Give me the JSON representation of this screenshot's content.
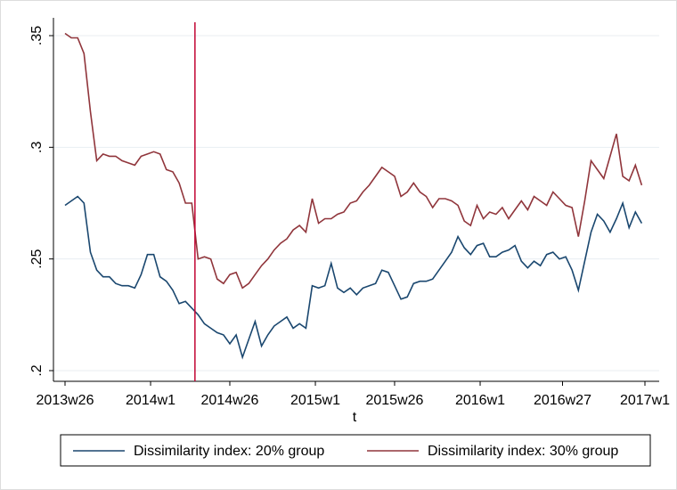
{
  "chart_data": {
    "type": "line",
    "x_label": "t",
    "x": [
      2781,
      2783,
      2785,
      2787,
      2789,
      2791,
      2793,
      2795,
      2797,
      2799,
      2801,
      2803,
      2805,
      2807,
      2809,
      2811,
      2813,
      2815,
      2817,
      2819,
      2821,
      2823,
      2825,
      2827,
      2829,
      2831,
      2833,
      2835,
      2837,
      2839,
      2841,
      2843,
      2845,
      2847,
      2849,
      2851,
      2853,
      2855,
      2857,
      2859,
      2861,
      2863,
      2865,
      2867,
      2869,
      2871,
      2873,
      2875,
      2877,
      2879,
      2881,
      2883,
      2885,
      2887,
      2889,
      2891,
      2893,
      2895,
      2897,
      2899,
      2901,
      2903,
      2905,
      2907,
      2909,
      2911,
      2913,
      2915,
      2917,
      2919,
      2921,
      2923,
      2925,
      2927,
      2929,
      2931,
      2933,
      2935,
      2937,
      2939,
      2941,
      2943,
      2945,
      2947,
      2949,
      2951,
      2953,
      2955,
      2957,
      2959,
      2961,
      2963
    ],
    "series": [
      {
        "name": "Dissimilarity index: 20% group",
        "color": "#1a476f",
        "values": [
          0.274,
          0.276,
          0.278,
          0.275,
          0.253,
          0.245,
          0.242,
          0.242,
          0.239,
          0.238,
          0.238,
          0.237,
          0.243,
          0.252,
          0.252,
          0.242,
          0.24,
          0.236,
          0.23,
          0.231,
          0.228,
          0.225,
          0.221,
          0.219,
          0.217,
          0.216,
          0.212,
          0.216,
          0.206,
          0.214,
          0.222,
          0.211,
          0.216,
          0.22,
          0.222,
          0.224,
          0.219,
          0.221,
          0.219,
          0.238,
          0.237,
          0.238,
          0.248,
          0.237,
          0.235,
          0.237,
          0.234,
          0.237,
          0.238,
          0.239,
          0.245,
          0.244,
          0.238,
          0.232,
          0.233,
          0.239,
          0.24,
          0.24,
          0.241,
          0.245,
          0.249,
          0.253,
          0.26,
          0.255,
          0.252,
          0.256,
          0.257,
          0.251,
          0.251,
          0.253,
          0.254,
          0.256,
          0.249,
          0.246,
          0.249,
          0.247,
          0.252,
          0.253,
          0.25,
          0.251,
          0.245,
          0.236,
          0.249,
          0.262,
          0.27,
          0.267,
          0.262,
          0.268,
          0.275,
          0.264,
          0.271,
          0.266
        ]
      },
      {
        "name": "Dissimilarity index: 30% group",
        "color": "#90353b",
        "values": [
          0.351,
          0.349,
          0.349,
          0.342,
          0.316,
          0.294,
          0.297,
          0.296,
          0.296,
          0.294,
          0.293,
          0.292,
          0.296,
          0.297,
          0.298,
          0.297,
          0.29,
          0.289,
          0.284,
          0.275,
          0.275,
          0.25,
          0.251,
          0.25,
          0.241,
          0.239,
          0.243,
          0.244,
          0.237,
          0.239,
          0.243,
          0.247,
          0.25,
          0.254,
          0.257,
          0.259,
          0.263,
          0.265,
          0.262,
          0.277,
          0.266,
          0.268,
          0.268,
          0.27,
          0.271,
          0.275,
          0.276,
          0.28,
          0.283,
          0.287,
          0.291,
          0.289,
          0.287,
          0.278,
          0.28,
          0.284,
          0.28,
          0.278,
          0.273,
          0.277,
          0.277,
          0.276,
          0.274,
          0.267,
          0.265,
          0.274,
          0.268,
          0.271,
          0.27,
          0.273,
          0.268,
          0.272,
          0.276,
          0.272,
          0.278,
          0.276,
          0.274,
          0.28,
          0.277,
          0.274,
          0.273,
          0.26,
          0.276,
          0.294,
          0.29,
          0.286,
          0.296,
          0.306,
          0.287,
          0.285,
          0.292,
          0.283
        ]
      }
    ],
    "xline": 2822,
    "xline_color": "#c10534",
    "xlim": [
      2781,
      2964
    ],
    "xticks": [
      {
        "value": 2781,
        "label": "2013w26"
      },
      {
        "value": 2808,
        "label": "2014w1"
      },
      {
        "value": 2833,
        "label": "2014w26"
      },
      {
        "value": 2860,
        "label": "2015w1"
      },
      {
        "value": 2885,
        "label": "2015w26"
      },
      {
        "value": 2912,
        "label": "2016w1"
      },
      {
        "value": 2938,
        "label": "2016w27"
      },
      {
        "value": 2964,
        "label": "2017w1"
      }
    ],
    "ylim": [
      0.2,
      0.35
    ],
    "yticks": [
      {
        "value": 0.2,
        "label": ".2"
      },
      {
        "value": 0.25,
        "label": ".25"
      },
      {
        "value": 0.3,
        "label": ".3"
      },
      {
        "value": 0.35,
        "label": ".35"
      }
    ],
    "grid": true,
    "legend": "bottom"
  }
}
